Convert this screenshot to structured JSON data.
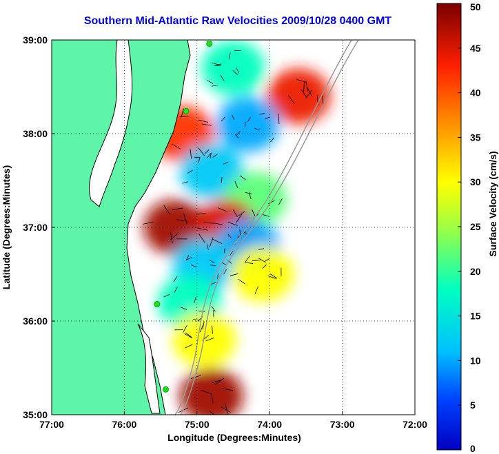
{
  "title": "Southern Mid-Atlantic Raw Velocities 2009/10/28 0400 GMT",
  "xlabel": "Longitude (Degrees:Minutes)",
  "ylabel": "Latitude (Degrees:Minutes)",
  "colorbar_label": "Surface Velocity (cm/s)",
  "colors": {
    "land": "#5ff5a8",
    "coast": "#000000",
    "grid": "#000000",
    "depth_contour": "#9a9a9a",
    "station": "#22dd22"
  },
  "chart_data": {
    "type": "heatmap",
    "title": "Southern Mid-Atlantic Raw Velocities 2009/10/28 0400 GMT",
    "xlabel": "Longitude (Degrees:Minutes)",
    "ylabel": "Latitude (Degrees:Minutes)",
    "xlim": [
      -77,
      -72
    ],
    "ylim": [
      35,
      39
    ],
    "x_ticks": [
      {
        "value": -77,
        "label": "77:00"
      },
      {
        "value": -76,
        "label": "76:00"
      },
      {
        "value": -75,
        "label": "75:00"
      },
      {
        "value": -74,
        "label": "74:00"
      },
      {
        "value": -73,
        "label": "73:00"
      },
      {
        "value": -72,
        "label": "72:00"
      }
    ],
    "y_ticks": [
      {
        "value": 39,
        "label": "39:00"
      },
      {
        "value": 38,
        "label": "38:00"
      },
      {
        "value": 37,
        "label": "37:00"
      },
      {
        "value": 36,
        "label": "36:00"
      },
      {
        "value": 35,
        "label": "35:00"
      }
    ],
    "grid": true,
    "colorbar": {
      "label": "Surface Velocity (cm/s)",
      "range": [
        0,
        50
      ],
      "ticks": [
        0,
        5,
        10,
        15,
        20,
        25,
        30,
        35,
        40,
        45,
        50
      ],
      "colormap": "jet"
    },
    "speed_regions": [
      {
        "lon": -74.5,
        "lat": 38.7,
        "speed": 18
      },
      {
        "lon": -73.6,
        "lat": 38.4,
        "speed": 44
      },
      {
        "lon": -74.3,
        "lat": 38.1,
        "speed": 10
      },
      {
        "lon": -75.2,
        "lat": 38.0,
        "speed": 42
      },
      {
        "lon": -74.8,
        "lat": 37.6,
        "speed": 12
      },
      {
        "lon": -74.2,
        "lat": 37.3,
        "speed": 22
      },
      {
        "lon": -75.3,
        "lat": 37.0,
        "speed": 48
      },
      {
        "lon": -74.6,
        "lat": 37.0,
        "speed": 45
      },
      {
        "lon": -74.3,
        "lat": 36.8,
        "speed": 10
      },
      {
        "lon": -74.9,
        "lat": 36.6,
        "speed": 12
      },
      {
        "lon": -74.1,
        "lat": 36.5,
        "speed": 30
      },
      {
        "lon": -75.1,
        "lat": 36.2,
        "speed": 18
      },
      {
        "lon": -74.9,
        "lat": 35.8,
        "speed": 30
      },
      {
        "lon": -74.8,
        "lat": 35.2,
        "speed": 48
      }
    ],
    "stations": [
      {
        "lon": -74.83,
        "lat": 38.96
      },
      {
        "lon": -75.15,
        "lat": 38.24
      },
      {
        "lon": -75.55,
        "lat": 36.18
      },
      {
        "lon": -75.43,
        "lat": 35.27
      }
    ]
  }
}
